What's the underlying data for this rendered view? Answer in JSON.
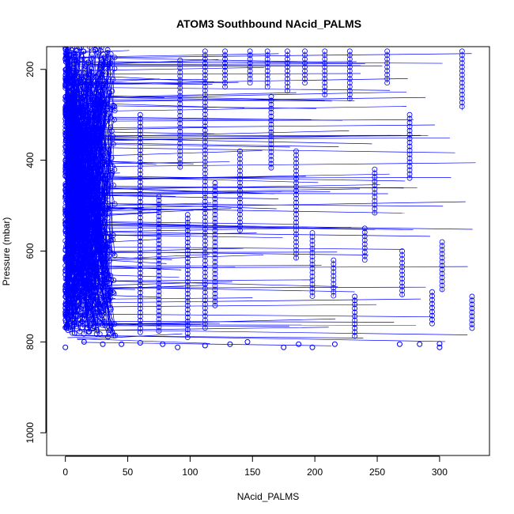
{
  "chart_data": {
    "type": "scatter",
    "title": "ATOM3 Southbound NAcid_PALMS",
    "xlabel": "NAcid_PALMS",
    "ylabel": "Pressure (mbar)",
    "xlim": [
      -15,
      340
    ],
    "ylim": [
      150,
      1050
    ],
    "y_reversed": true,
    "x_ticks": [
      0,
      50,
      100,
      150,
      200,
      250,
      300
    ],
    "y_ticks": [
      200,
      400,
      600,
      800,
      1000
    ],
    "grid": false,
    "legend": "none",
    "marker": "open-circle",
    "series": [
      {
        "color": "#0000ff",
        "columns": [
          {
            "x": 92,
            "p_top": 180,
            "p_bottom": 420
          },
          {
            "x": 112,
            "p_top": 160,
            "p_bottom": 770
          },
          {
            "x": 128,
            "p_top": 160,
            "p_bottom": 240
          },
          {
            "x": 148,
            "p_top": 160,
            "p_bottom": 230
          },
          {
            "x": 162,
            "p_top": 160,
            "p_bottom": 240
          },
          {
            "x": 178,
            "p_top": 160,
            "p_bottom": 250
          },
          {
            "x": 192,
            "p_top": 160,
            "p_bottom": 230
          },
          {
            "x": 208,
            "p_top": 160,
            "p_bottom": 260
          },
          {
            "x": 228,
            "p_top": 160,
            "p_bottom": 270
          },
          {
            "x": 258,
            "p_top": 160,
            "p_bottom": 230
          },
          {
            "x": 276,
            "p_top": 300,
            "p_bottom": 440
          },
          {
            "x": 318,
            "p_top": 160,
            "p_bottom": 290
          },
          {
            "x": 302,
            "p_top": 580,
            "p_bottom": 690
          },
          {
            "x": 326,
            "p_top": 700,
            "p_bottom": 770
          },
          {
            "x": 248,
            "p_top": 420,
            "p_bottom": 520
          },
          {
            "x": 240,
            "p_top": 550,
            "p_bottom": 620
          },
          {
            "x": 198,
            "p_top": 560,
            "p_bottom": 700
          },
          {
            "x": 165,
            "p_top": 260,
            "p_bottom": 420
          },
          {
            "x": 140,
            "p_top": 380,
            "p_bottom": 560
          },
          {
            "x": 60,
            "p_top": 300,
            "p_bottom": 780
          },
          {
            "x": 75,
            "p_top": 480,
            "p_bottom": 780
          },
          {
            "x": 98,
            "p_top": 520,
            "p_bottom": 790
          },
          {
            "x": 120,
            "p_top": 450,
            "p_bottom": 720
          },
          {
            "x": 185,
            "p_top": 380,
            "p_bottom": 620
          },
          {
            "x": 215,
            "p_top": 620,
            "p_bottom": 700
          },
          {
            "x": 232,
            "p_top": 700,
            "p_bottom": 790
          },
          {
            "x": 270,
            "p_top": 600,
            "p_bottom": 700
          },
          {
            "x": 294,
            "p_top": 690,
            "p_bottom": 760
          }
        ],
        "bottom_points": [
          {
            "x": 0,
            "y": 812
          },
          {
            "x": 15,
            "y": 800
          },
          {
            "x": 45,
            "y": 805
          },
          {
            "x": 78,
            "y": 805
          },
          {
            "x": 90,
            "y": 812
          },
          {
            "x": 112,
            "y": 808
          },
          {
            "x": 132,
            "y": 805
          },
          {
            "x": 175,
            "y": 812
          },
          {
            "x": 187,
            "y": 805
          },
          {
            "x": 198,
            "y": 812
          },
          {
            "x": 216,
            "y": 805
          },
          {
            "x": 268,
            "y": 805
          },
          {
            "x": 284,
            "y": 805
          },
          {
            "x": 300,
            "y": 812
          },
          {
            "x": 300,
            "y": 804
          },
          {
            "x": 146,
            "y": 800
          },
          {
            "x": 30,
            "y": 805
          },
          {
            "x": 60,
            "y": 802
          }
        ]
      }
    ]
  }
}
